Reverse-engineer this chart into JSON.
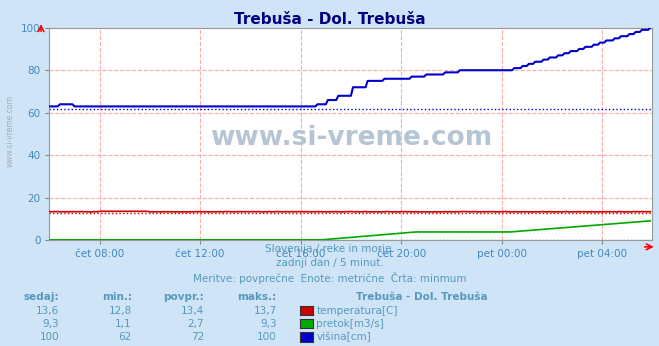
{
  "title": "Trebuša - Dol. Trebuša",
  "title_color": "#000080",
  "bg_color": "#d0e4f7",
  "plot_bg_color": "#ffffff",
  "grid_color": "#ffaaaa",
  "grid_style": "--",
  "tick_color": "#4488bb",
  "ylim": [
    0,
    100
  ],
  "xlim": [
    0,
    288
  ],
  "x_tick_positions": [
    24,
    72,
    120,
    168,
    216,
    264
  ],
  "x_tick_labels": [
    "čet 08:00",
    "čet 12:00",
    "čet 16:00",
    "čet 20:00",
    "pet 00:00",
    "pet 04:00"
  ],
  "y_tick_positions": [
    0,
    20,
    40,
    60,
    80,
    100
  ],
  "subtitle_lines": [
    "Slovenija / reke in morje.",
    "zadnji dan / 5 minut.",
    "Meritve: povprečne  Enote: metrične  Črta: minmum"
  ],
  "subtitle_color": "#5599bb",
  "table_headers": [
    "sedaj:",
    "min.:",
    "povpr.:",
    "maks.:"
  ],
  "table_rows": [
    [
      "13,6",
      "12,8",
      "13,4",
      "13,7",
      "temperatura[C]",
      "#cc0000"
    ],
    [
      "9,3",
      "1,1",
      "2,7",
      "9,3",
      "pretok[m3/s]",
      "#00aa00"
    ],
    [
      "100",
      "62",
      "72",
      "100",
      "višina[cm]",
      "#0000cc"
    ]
  ],
  "table_title": "Trebuša - Dol. Trebuša",
  "watermark": "www.si-vreme.com",
  "temp_color": "#cc0000",
  "flow_color": "#00aa00",
  "height_color": "#0000cc",
  "minline_style": ":",
  "minline_temp": 13.0,
  "minline_flow": 0.3,
  "minline_height": 62.0,
  "watermark_color": "#aabbcc",
  "sidebar_text": "www.si-vreme.com",
  "sidebar_color": "#aaaaaa"
}
